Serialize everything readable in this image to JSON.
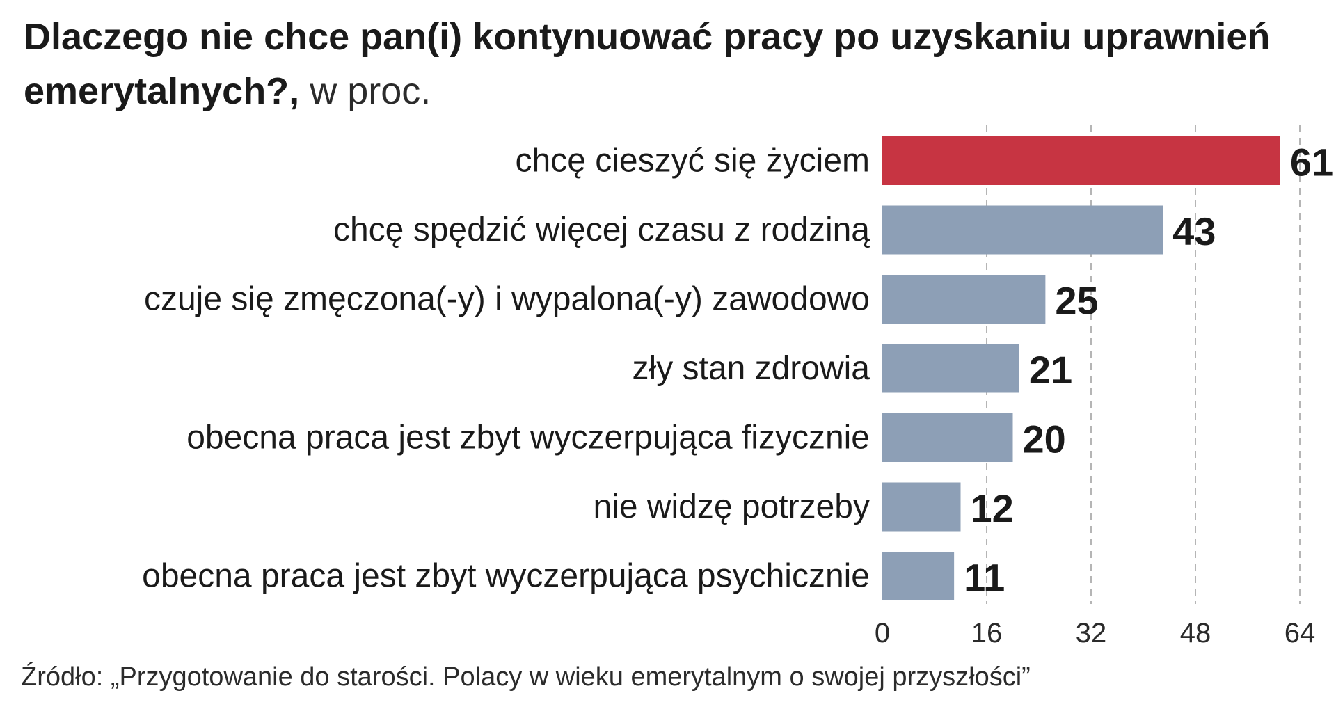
{
  "chart_data": {
    "type": "bar",
    "orientation": "horizontal",
    "title": "Dlaczego nie chce pan(i) kontynuować pracy po uzyskaniu uprawnień emerytalnych?,",
    "title_unit": "w proc.",
    "categories": [
      "chcę cieszyć się życiem",
      "chcę spędzić więcej czasu z rodziną",
      "czuje się zmęczona(-y) i wypalona(-y) zawodowo",
      "zły stan zdrowia",
      "obecna praca jest zbyt wyczerpująca fizycznie",
      "nie widzę potrzeby",
      "obecna praca jest zbyt wyczerpująca psychicznie"
    ],
    "values": [
      61,
      43,
      25,
      21,
      20,
      12,
      11
    ],
    "xlim": [
      0,
      64
    ],
    "xticks": [
      0,
      16,
      32,
      48,
      64
    ],
    "grid": true,
    "colors": {
      "highlight": "#c73442",
      "bar": "#8d9fb6"
    },
    "highlight_index": 0
  },
  "source": "Źródło: „Przygotowanie do starości. Polacy w wieku emerytalnym o swojej przyszłości”"
}
